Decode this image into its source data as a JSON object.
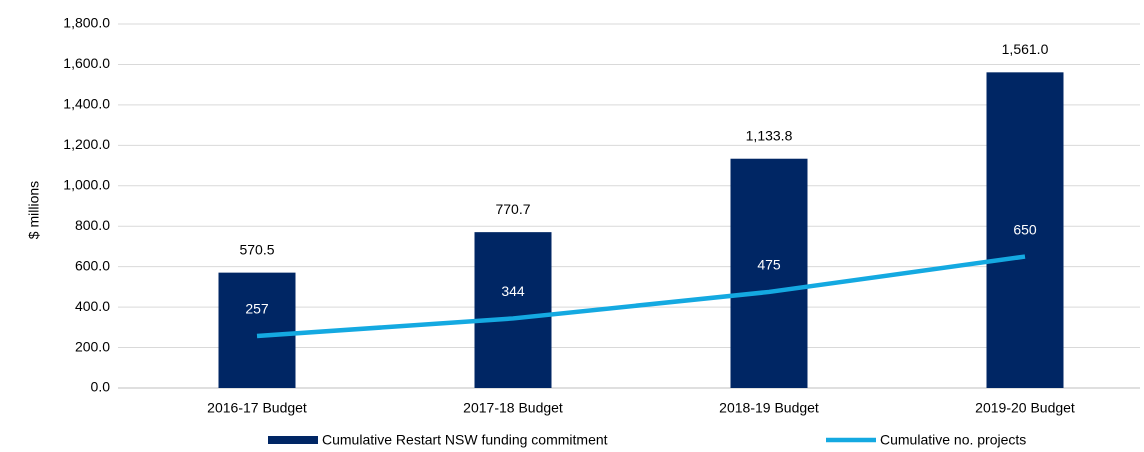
{
  "chart_data": {
    "type": "bar",
    "y_label": "$ millions",
    "categories": [
      "2016-17 Budget",
      "2017-18 Budget",
      "2018-19 Budget",
      "2019-20 Budget"
    ],
    "series": [
      {
        "name": "Cumulative Restart NSW funding commitment",
        "type": "bar",
        "color": "#002664",
        "values": [
          570.5,
          770.7,
          1133.8,
          1561.0
        ],
        "value_labels": [
          "570.5",
          "770.7",
          "1,133.8",
          "1,561.0"
        ]
      },
      {
        "name": "Cumulative no. projects",
        "type": "line",
        "color": "#14a9e1",
        "values": [
          257,
          344,
          475,
          650
        ]
      }
    ],
    "ylim": [
      0,
      1800
    ],
    "yticks": [
      {
        "value": 0,
        "label": "0.0"
      },
      {
        "value": 200,
        "label": "200.0"
      },
      {
        "value": 400,
        "label": "400.0"
      },
      {
        "value": 600,
        "label": "600.0"
      },
      {
        "value": 800,
        "label": "800.0"
      },
      {
        "value": 1000,
        "label": "1,000.0"
      },
      {
        "value": 1200,
        "label": "1,200.0"
      },
      {
        "value": 1400,
        "label": "1,400.0"
      },
      {
        "value": 1600,
        "label": "1,600.0"
      },
      {
        "value": 1800,
        "label": "1,800.0"
      }
    ],
    "grid": true,
    "legend": "bottom"
  }
}
